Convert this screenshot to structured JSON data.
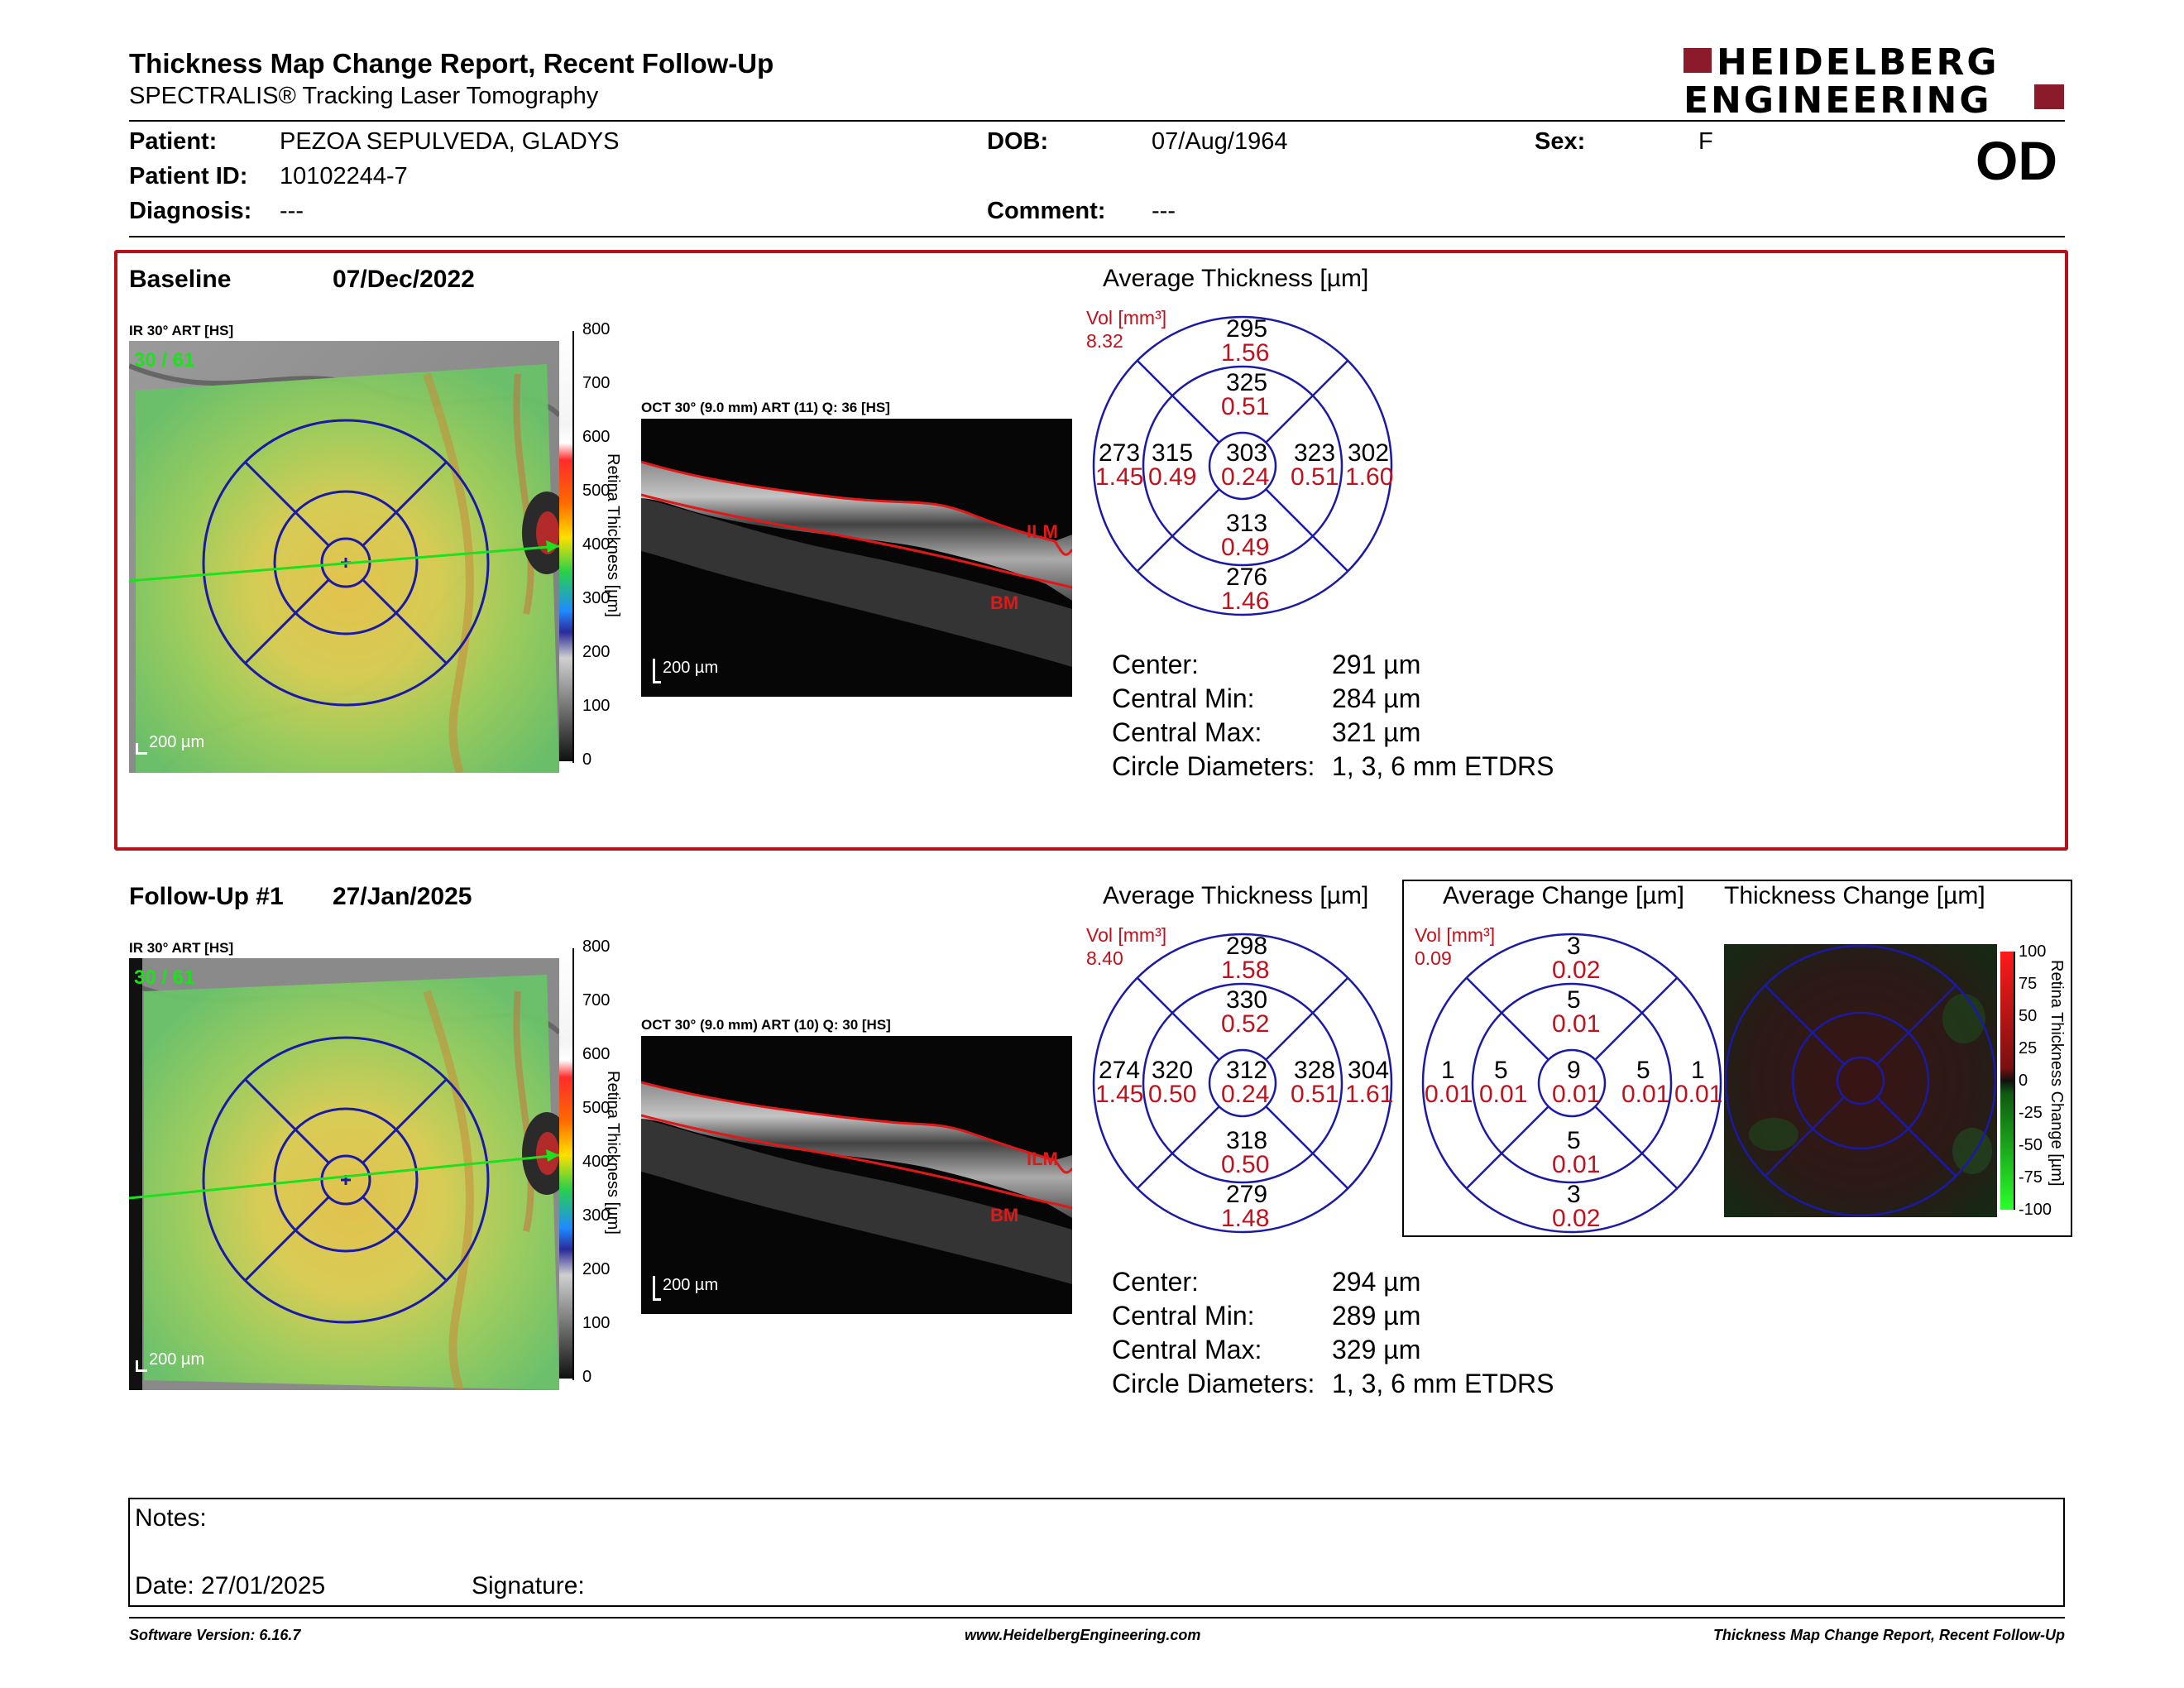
{
  "header": {
    "title": "Thickness Map Change Report, Recent Follow-Up",
    "subtitle": "SPECTRALIS® Tracking Laser Tomography",
    "logo_line1": "HEIDELBERG",
    "logo_line2": "ENGINEERING",
    "eye": "OD"
  },
  "patient": {
    "patient_label": "Patient:",
    "patient_value": "PEZOA SEPULVEDA, GLADYS",
    "id_label": "Patient ID:",
    "id_value": "10102244-7",
    "diagnosis_label": "Diagnosis:",
    "diagnosis_value": "---",
    "dob_label": "DOB:",
    "dob_value": "07/Aug/1964",
    "comment_label": "Comment:",
    "comment_value": "---",
    "sex_label": "Sex:",
    "sex_value": "F"
  },
  "baseline": {
    "label": "Baseline",
    "date": "07/Dec/2022",
    "ir_label": "IR 30° ART [HS]",
    "ir_overlay": "30 / 61",
    "scale": "200 µm",
    "oct_label": "OCT 30° (9.0 mm) ART (11) Q: 36 [HS]",
    "oct_scale": "200 µm",
    "ilm": "ILM",
    "bm": "BM",
    "colorbar_title": "Retina Thickness [µm]",
    "colorbar_ticks": [
      "800",
      "700",
      "600",
      "500",
      "400",
      "300",
      "200",
      "100",
      "0"
    ],
    "grid_title": "Average Thickness [µm]",
    "vol_label": "Vol [mm³]",
    "vol_value": "8.32",
    "grid": {
      "outer_sup": "295",
      "outer_sup_v": "1.56",
      "inner_sup": "325",
      "inner_sup_v": "0.51",
      "outer_temp": "273",
      "outer_temp_v": "1.45",
      "inner_temp": "315",
      "inner_temp_v": "0.49",
      "center": "303",
      "center_v": "0.24",
      "inner_nas": "323",
      "inner_nas_v": "0.51",
      "outer_nas": "302",
      "outer_nas_v": "1.60",
      "inner_inf": "313",
      "inner_inf_v": "0.49",
      "outer_inf": "276",
      "outer_inf_v": "1.46"
    },
    "summary": {
      "center_k": "Center:",
      "center_v": "291 µm",
      "min_k": "Central Min:",
      "min_v": "284 µm",
      "max_k": "Central Max:",
      "max_v": "321 µm",
      "diam_k": "Circle Diameters:",
      "diam_v": "1, 3, 6 mm ETDRS"
    }
  },
  "followup": {
    "label": "Follow-Up #1",
    "date": "27/Jan/2025",
    "ir_label": "IR 30° ART [HS]",
    "ir_overlay": "30 / 61",
    "scale": "200 µm",
    "oct_label": "OCT 30° (9.0 mm) ART (10) Q: 30 [HS]",
    "oct_scale": "200 µm",
    "ilm": "ILM",
    "bm": "BM",
    "colorbar_title": "Retina Thickness [µm]",
    "colorbar_ticks": [
      "800",
      "700",
      "600",
      "500",
      "400",
      "300",
      "200",
      "100",
      "0"
    ],
    "grid_title": "Average Thickness [µm]",
    "vol_label": "Vol [mm³]",
    "vol_value": "8.40",
    "grid": {
      "outer_sup": "298",
      "outer_sup_v": "1.58",
      "inner_sup": "330",
      "inner_sup_v": "0.52",
      "outer_temp": "274",
      "outer_temp_v": "1.45",
      "inner_temp": "320",
      "inner_temp_v": "0.50",
      "center": "312",
      "center_v": "0.24",
      "inner_nas": "328",
      "inner_nas_v": "0.51",
      "outer_nas": "304",
      "outer_nas_v": "1.61",
      "inner_inf": "318",
      "inner_inf_v": "0.50",
      "outer_inf": "279",
      "outer_inf_v": "1.48"
    },
    "summary": {
      "center_k": "Center:",
      "center_v": "294 µm",
      "min_k": "Central Min:",
      "min_v": "289 µm",
      "max_k": "Central Max:",
      "max_v": "329 µm",
      "diam_k": "Circle Diameters:",
      "diam_v": "1, 3, 6 mm ETDRS"
    },
    "change_title": "Average Change [µm]",
    "change_vol_label": "Vol [mm³]",
    "change_vol_value": "0.09",
    "change_grid": {
      "outer_sup": "3",
      "outer_sup_v": "0.02",
      "inner_sup": "5",
      "inner_sup_v": "0.01",
      "outer_temp": "1",
      "outer_temp_v": "0.01",
      "inner_temp": "5",
      "inner_temp_v": "0.01",
      "center": "9",
      "center_v": "0.01",
      "inner_nas": "5",
      "inner_nas_v": "0.01",
      "outer_nas": "1",
      "outer_nas_v": "0.01",
      "inner_inf": "5",
      "inner_inf_v": "0.01",
      "outer_inf": "3",
      "outer_inf_v": "0.02"
    },
    "thickness_change_title": "Thickness Change [µm]",
    "change_colorbar_title": "Retina Thickness Change [µm]",
    "change_colorbar_ticks": [
      "100",
      "75",
      "50",
      "25",
      "0",
      "-25",
      "-50",
      "-75",
      "-100"
    ]
  },
  "notes": {
    "notes_label": "Notes:",
    "date_label": "Date: 27/01/2025",
    "signature_label": "Signature:"
  },
  "footer": {
    "left": "Software Version: 6.16.7",
    "center": "www.HeidelbergEngineering.com",
    "right": "Thickness Map Change Report, Recent Follow-Up"
  },
  "colors": {
    "brand": "#8b1a2b",
    "highlight_border": "#b5121b",
    "etdrs_line": "#1a1aa6",
    "value_red": "#c0111c",
    "scan_line": "#1fe01f"
  }
}
